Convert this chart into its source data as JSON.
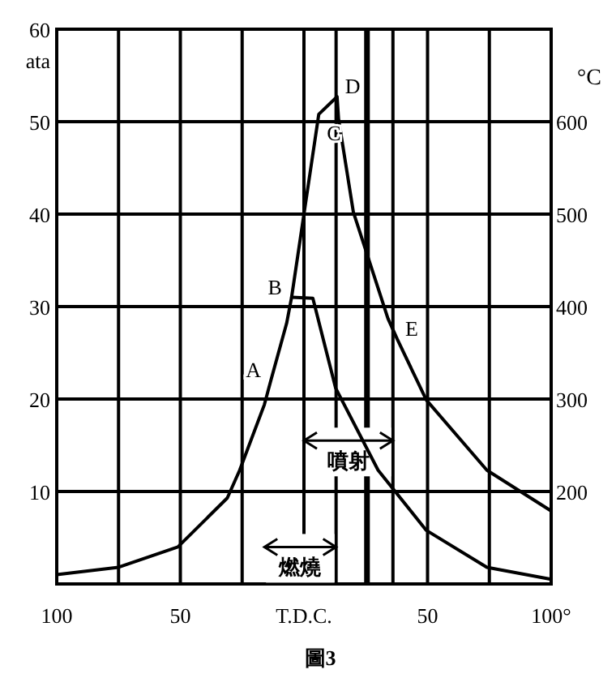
{
  "chart_data": {
    "type": "line",
    "ylabel": "ata",
    "y2label": "°C",
    "xlim": [
      -100,
      100
    ],
    "xticks": [
      {
        "value": -100,
        "label": "100"
      },
      {
        "value": -75,
        "label": null
      },
      {
        "value": -50,
        "label": "50"
      },
      {
        "value": -25,
        "label": null
      },
      {
        "value": 0,
        "label": "T.D.C."
      },
      {
        "value": 25,
        "label": null
      },
      {
        "value": 50,
        "label": "50"
      },
      {
        "value": 75,
        "label": null
      },
      {
        "value": 100,
        "label": "100°"
      }
    ],
    "ylim": [
      0,
      60
    ],
    "yticks": [
      10,
      20,
      30,
      40,
      50,
      60
    ],
    "y2lim": [
      100,
      700
    ],
    "y2ticks": [
      200,
      300,
      400,
      500,
      600
    ],
    "grid": true,
    "line_style": "solid",
    "marker": "none",
    "series": [
      {
        "color": "#000000",
        "x": [
          -100,
          -75,
          -51,
          -31,
          -26,
          -16,
          -13.4,
          -7,
          -5,
          6,
          13.4,
          14,
          20,
          34,
          37.7,
          49.5,
          74,
          100
        ],
        "values": [
          1.0,
          1.8,
          4.0,
          9.3,
          12.3,
          19.4,
          22,
          28.2,
          31,
          50.8,
          52.7,
          50.3,
          40.2,
          28.7,
          26.5,
          19.9,
          12.3,
          7.9
        ]
      },
      {
        "color": "#000000",
        "x": [
          -5,
          3.6,
          12.8,
          30,
          49.5,
          74,
          100
        ],
        "values": [
          31,
          30.9,
          21.2,
          12.3,
          5.8,
          1.8,
          0.5
        ]
      }
    ],
    "ref_lines": [
      {
        "axis": "x",
        "value": 13
      },
      {
        "axis": "x",
        "value": 26
      },
      {
        "axis": "x",
        "value": 36
      }
    ],
    "bands": [
      {
        "axis": "x",
        "from": 0,
        "to": 36,
        "label": "噴射"
      },
      {
        "axis": "x",
        "from": -16,
        "to": 13,
        "label": "燃燒"
      }
    ],
    "annotations": [
      {
        "text": "A",
        "x": -13.4,
        "y": 22
      },
      {
        "text": "B",
        "x": -5,
        "y": 31
      },
      {
        "text": "C",
        "x": 6,
        "y": 50.8
      },
      {
        "text": "D",
        "x": 13.4,
        "y": 52.7
      },
      {
        "text": "E",
        "x": 37.7,
        "y": 26.5
      },
      "圖3"
    ]
  }
}
